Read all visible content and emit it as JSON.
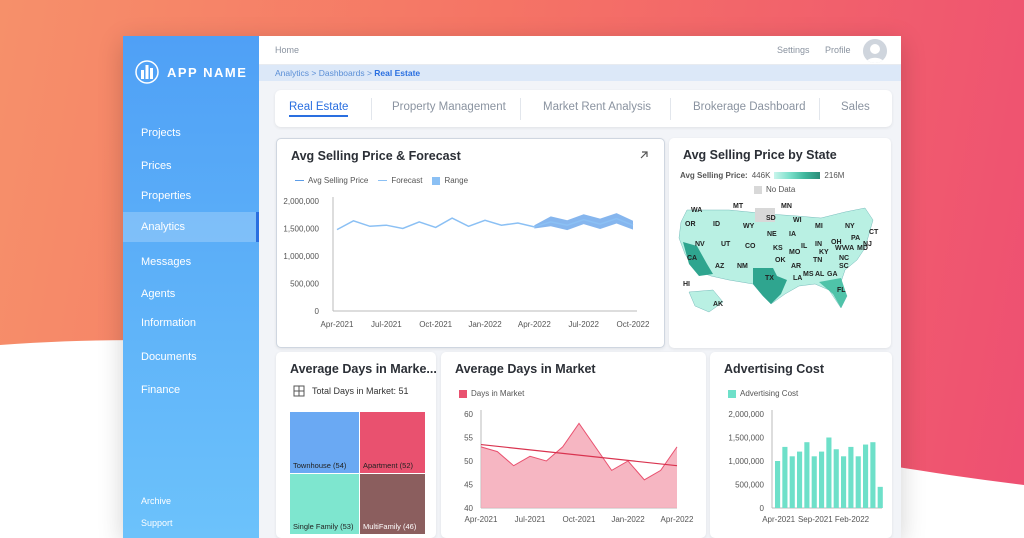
{
  "app": {
    "name": "APP NAME"
  },
  "sidebar": {
    "items": [
      {
        "label": "Projects"
      },
      {
        "label": "Prices"
      },
      {
        "label": "Properties"
      },
      {
        "label": "Analytics"
      },
      {
        "label": "Messages"
      },
      {
        "label": "Agents"
      },
      {
        "label": "Information"
      },
      {
        "label": "Documents"
      },
      {
        "label": "Finance"
      }
    ],
    "active": "Analytics",
    "bottom": [
      {
        "label": "Archive"
      },
      {
        "label": "Support"
      }
    ]
  },
  "topbar": {
    "home": "Home",
    "settings": "Settings",
    "profile": "Profile"
  },
  "breadcrumb": {
    "items": [
      "Analytics",
      "Dashboards"
    ],
    "current": "Real Estate",
    "separator": ">"
  },
  "tabs": [
    {
      "label": "Real Estate"
    },
    {
      "label": "Property Management"
    },
    {
      "label": "Market Rent Analysis"
    },
    {
      "label": "Brokerage Dashboard"
    },
    {
      "label": "Sales"
    }
  ],
  "colors": {
    "accent": "#2a6fe0",
    "teal": "#2fa58f",
    "pink": "#e9516f",
    "lightblue": "#8bc0f4",
    "cyan": "#6ee0c9"
  },
  "cards": {
    "avg_price": {
      "title": "Avg Selling Price & Forecast",
      "icon": "expand-arrow-icon",
      "legend": [
        "Avg Selling Price",
        "Forecast",
        "Range"
      ]
    },
    "by_state": {
      "title": "Avg Selling Price by State",
      "legend_label": "Avg Selling Price:",
      "min": "446K",
      "max": "216M",
      "no_data": "No Data"
    },
    "days_treemap": {
      "title": "Average Days in Marke...",
      "total_label": "Total Days in Market: 51",
      "icon": "grid-icon"
    },
    "days_area": {
      "title": "Average Days in Market",
      "legend": "Days in Market"
    },
    "ad_cost": {
      "title": "Advertising Cost",
      "legend": "Advertising Cost"
    }
  },
  "chart_data": [
    {
      "type": "line",
      "title": "Avg Selling Price & Forecast",
      "x": [
        "Apr-2021",
        "May-2021",
        "Jun-2021",
        "Jul-2021",
        "Aug-2021",
        "Sep-2021",
        "Oct-2021",
        "Nov-2021",
        "Dec-2021",
        "Jan-2022",
        "Feb-2022",
        "Mar-2022",
        "Apr-2022",
        "May-2022",
        "Jun-2022",
        "Jul-2022",
        "Aug-2022",
        "Sep-2022",
        "Oct-2022"
      ],
      "x_ticks": [
        "Apr-2021",
        "Jul-2021",
        "Oct-2021",
        "Jan-2022",
        "Apr-2022",
        "Jul-2022",
        "Oct-2022"
      ],
      "y_ticks": [
        "2,000,000",
        "1,500,000",
        "1,000,000",
        "500,000",
        "0"
      ],
      "ylim": [
        0,
        2000000
      ],
      "series": [
        {
          "name": "Avg Selling Price",
          "values": [
            1480000,
            1640000,
            1540000,
            1560000,
            1500000,
            1620000,
            1520000,
            1690000,
            1540000,
            1650000,
            1560000,
            1600000,
            1530000,
            null,
            null,
            null,
            null,
            null,
            null
          ]
        },
        {
          "name": "Forecast",
          "values": [
            null,
            null,
            null,
            null,
            null,
            null,
            null,
            null,
            null,
            null,
            null,
            null,
            1530000,
            1620000,
            1560000,
            1660000,
            1580000,
            1680000,
            1560000
          ]
        },
        {
          "name": "Range",
          "lower": [
            null,
            null,
            null,
            null,
            null,
            null,
            null,
            null,
            null,
            null,
            null,
            null,
            1500000,
            1540000,
            1470000,
            1580000,
            1490000,
            1590000,
            1480000
          ],
          "upper": [
            null,
            null,
            null,
            null,
            null,
            null,
            null,
            null,
            null,
            null,
            null,
            null,
            1560000,
            1720000,
            1650000,
            1760000,
            1680000,
            1780000,
            1640000
          ]
        }
      ]
    },
    {
      "type": "map",
      "title": "Avg Selling Price by State",
      "states": [
        "WA",
        "MT",
        "MN",
        "OR",
        "ID",
        "WY",
        "SD",
        "WI",
        "MI",
        "NY",
        "NV",
        "UT",
        "CO",
        "NE",
        "IA",
        "IL",
        "IN",
        "OH",
        "PA",
        "NJ",
        "CT",
        "CA",
        "AZ",
        "NM",
        "KS",
        "MO",
        "KY",
        "WV",
        "VA",
        "MD",
        "OK",
        "AR",
        "TN",
        "NC",
        "TX",
        "LA",
        "MS",
        "AL",
        "GA",
        "SC",
        "FL",
        "AK",
        "HI"
      ],
      "high": [
        "CA",
        "TX"
      ],
      "no_data": [
        "ND"
      ]
    },
    {
      "type": "table",
      "title": "Average Days in Marke...",
      "categories": [
        "Townhouse",
        "Apartment",
        "Single Family",
        "MultiFamily"
      ],
      "values": [
        54,
        52,
        53,
        46
      ]
    },
    {
      "type": "area",
      "title": "Average Days in Market",
      "x_ticks": [
        "Apr-2021",
        "Jul-2021",
        "Oct-2021",
        "Jan-2022",
        "Apr-2022"
      ],
      "y_ticks": [
        60,
        55,
        50,
        45,
        40
      ],
      "ylim": [
        40,
        60
      ],
      "x": [
        "Apr-2021",
        "May-2021",
        "Jun-2021",
        "Jul-2021",
        "Aug-2021",
        "Sep-2021",
        "Oct-2021",
        "Nov-2021",
        "Dec-2021",
        "Jan-2022",
        "Feb-2022",
        "Mar-2022",
        "Apr-2022"
      ],
      "series": [
        {
          "name": "Days in Market",
          "values": [
            53,
            52,
            49,
            51,
            50,
            53,
            58,
            53,
            48,
            50,
            46,
            48,
            53
          ]
        }
      ],
      "trend": [
        53.5,
        49
      ]
    },
    {
      "type": "bar",
      "title": "Advertising Cost",
      "x_ticks": [
        "Apr-2021",
        "Sep-2021",
        "Feb-2022"
      ],
      "y_ticks": [
        "2,000,000",
        "1,500,000",
        "1,000,000",
        "500,000",
        "0"
      ],
      "ylim": [
        0,
        2000000
      ],
      "series": [
        {
          "name": "Advertising Cost",
          "values": [
            1000000,
            1300000,
            1100000,
            1200000,
            1400000,
            1100000,
            1200000,
            1500000,
            1250000,
            1100000,
            1300000,
            1100000,
            1350000,
            1400000,
            450000
          ]
        }
      ]
    }
  ]
}
